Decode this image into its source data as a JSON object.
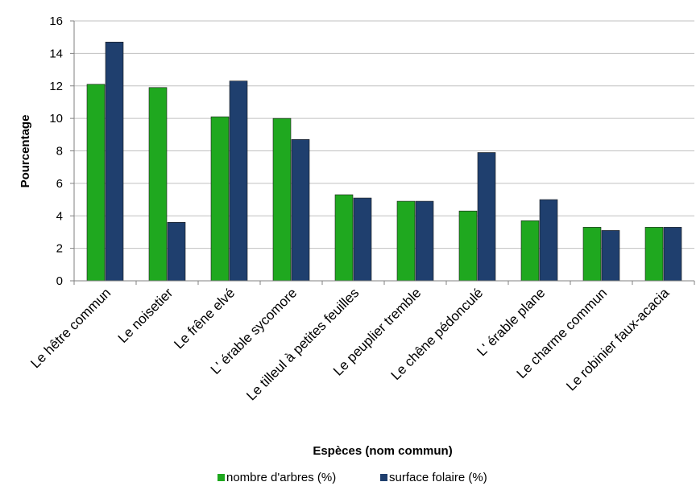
{
  "chart_data": {
    "type": "bar",
    "title": "",
    "xlabel": "Espèces (nom commun)",
    "ylabel": "Pourcentage",
    "ylim": [
      0,
      16
    ],
    "yticks": [
      0,
      2,
      4,
      6,
      8,
      10,
      12,
      14,
      16
    ],
    "grid": true,
    "legend_position": "bottom",
    "categories": [
      "Le hêtre commun",
      "Le noisetier",
      "Le frêne elvé",
      "L' érable sycomore",
      "Le tilleul à petites feuilles",
      "Le peuplier tremble",
      "Le chêne pédonculé",
      "L' érable plane",
      "Le charme commun",
      "Le robinier faux-acacia"
    ],
    "series": [
      {
        "name": "nombre d'arbres (%)",
        "color": "#1fa81f",
        "values": [
          12.1,
          11.9,
          10.1,
          10.0,
          5.3,
          4.9,
          4.3,
          3.7,
          3.3,
          3.3
        ]
      },
      {
        "name": "surface folaire (%)",
        "color": "#1f3f6e",
        "values": [
          14.7,
          3.6,
          12.3,
          8.7,
          5.1,
          4.9,
          7.9,
          5.0,
          3.1,
          3.3
        ]
      }
    ]
  }
}
